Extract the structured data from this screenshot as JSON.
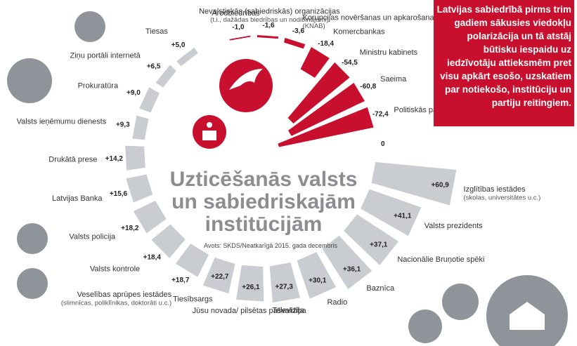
{
  "chart_data": {
    "type": "radial-bar",
    "title": "Uzticēšanās valsts un sabiedriskajām institūcijām",
    "source": "Avots: SKDS/Neatkarīgā 2015. gada decembris",
    "callout": "Latvijas sabiedrībā pirms trim gadiem sākusies viedokļu polarizācija un tā atstāj būtisku iespaidu uz iedzīvotāju attieksmēm pret visu apkārt esošo, uzskatiem par notiekošo, institūciju un partiju reitingiem.",
    "baseline": 0,
    "categories": [
      "Arodbiedrības",
      "Nevalstiskās (sabiedriskās) organizācijas",
      "Korupcijas novēršanas un apkarošanas birojs",
      "Komercbankas",
      "Ministru kabinets",
      "Saeima",
      "Politiskās partijas",
      "Izglītības iestādes",
      "Valsts prezidents",
      "Nacionālie Bruņotie spēki",
      "Baznīca",
      "Radio",
      "Televīzija",
      "Jūsu novada/ pilsētas pašvaldība",
      "Tiesībsargs",
      "Veselības aprūpes iestādes",
      "Valsts kontrole",
      "Valsts policija",
      "Latvijas Banka",
      "Drukātā prese",
      "Valsts ieņēmumu dienests",
      "Prokuratūra",
      "Ziņu portāli internetā",
      "Tiesas"
    ],
    "category_notes": [
      null,
      "(t.i., dažādas biedrības un nodibinājumi)",
      "(KNAB)",
      null,
      null,
      null,
      null,
      "(skolas, universitātes u.c.)",
      null,
      null,
      null,
      null,
      null,
      null,
      null,
      "(slimnīcas, poliklīnikas, doktorāti u.c.)",
      null,
      null,
      null,
      null,
      null,
      null,
      null,
      null
    ],
    "values": [
      -1.0,
      -1.6,
      -3.6,
      -18.4,
      -54.5,
      -60.8,
      -72.4,
      60.9,
      41.1,
      37.1,
      36.1,
      30.1,
      27.3,
      26.1,
      22.7,
      18.7,
      18.4,
      18.2,
      15.6,
      14.2,
      9.3,
      9.0,
      6.5,
      5.0
    ],
    "value_labels": [
      "-1,0",
      "-1,6",
      "-3,6",
      "-18,4",
      "-54,5",
      "-60,8",
      "-72,4",
      "+60,9",
      "+41,1",
      "+37,1",
      "+36,1",
      "+30,1",
      "+27,3",
      "+26,1",
      "+22,7",
      "+18,7",
      "+18,4",
      "+18,2",
      "+15,6",
      "+14,2",
      "+9,3",
      "+9,0",
      "+6,5",
      "+5,0"
    ],
    "positive_color": "#c9ccd1",
    "negative_color": "#c8102e"
  }
}
